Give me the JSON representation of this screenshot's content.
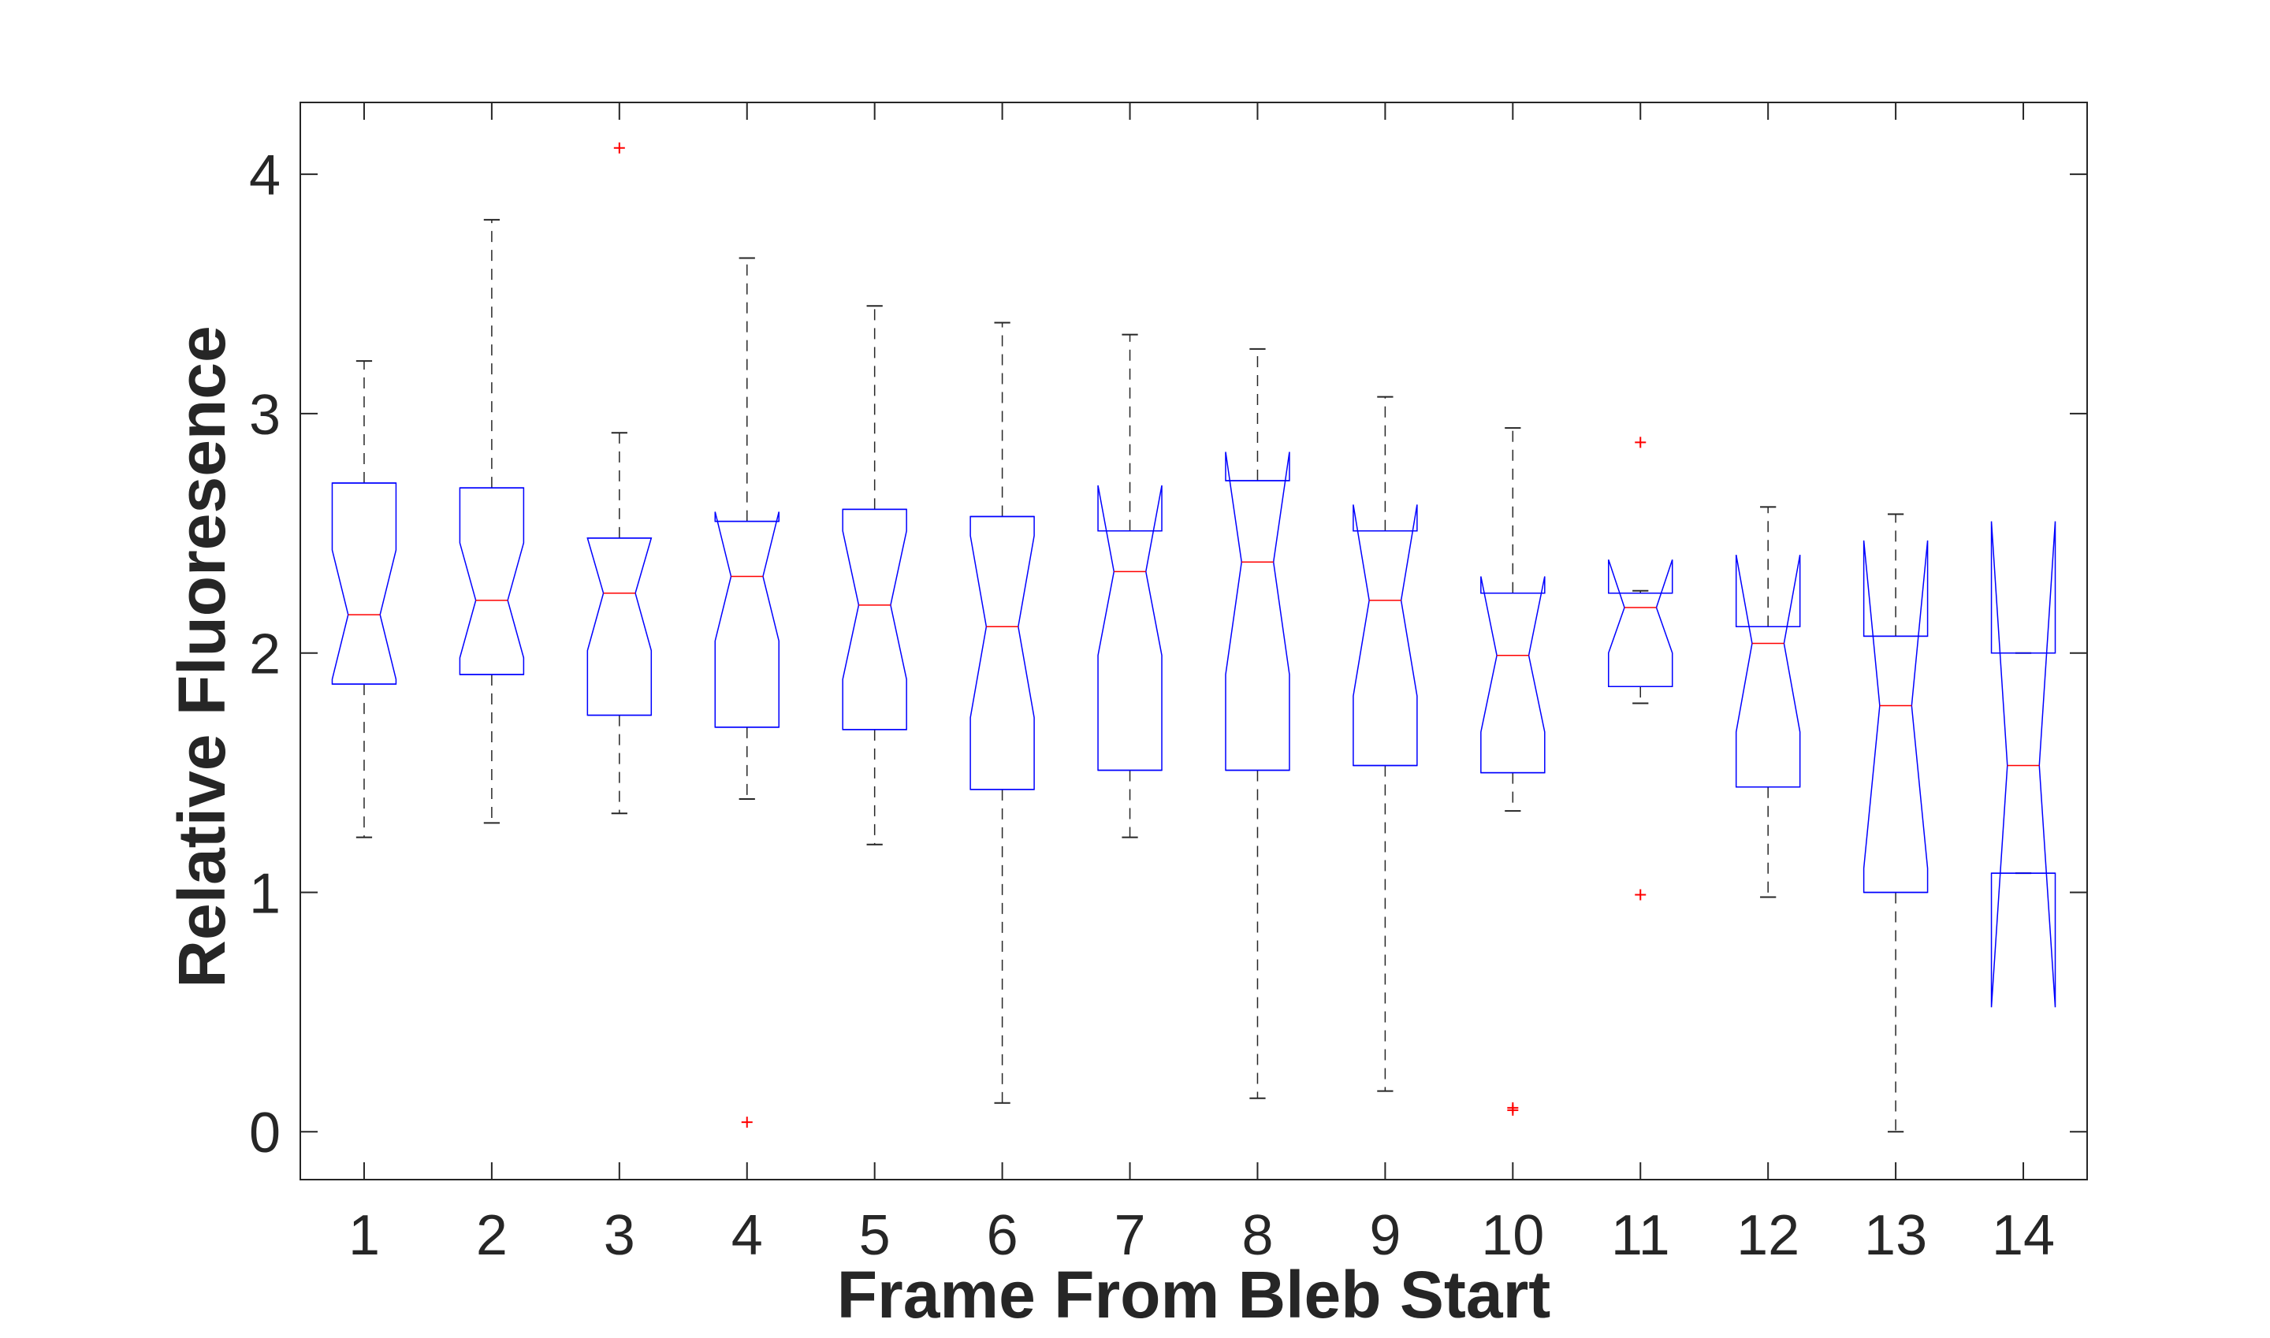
{
  "chart_data": {
    "type": "boxplot",
    "title": "",
    "xlabel": "Frame From Bleb Start",
    "ylabel": "Relative Fluoresence",
    "categories": [
      "1",
      "2",
      "3",
      "4",
      "5",
      "6",
      "7",
      "8",
      "9",
      "10",
      "11",
      "12",
      "13",
      "14"
    ],
    "xlim": [
      0.5,
      14.5
    ],
    "ylim": [
      -0.2,
      4.3
    ],
    "yticks": [
      0,
      1,
      2,
      3,
      4
    ],
    "notched": true,
    "grid": false,
    "colors": {
      "box": "#0000ff",
      "median": "#ff0000",
      "whisker": "#262626",
      "outlier": "#ff0000",
      "axes": "#262626"
    },
    "series": [
      {
        "category": "1",
        "q1": 1.87,
        "median": 2.16,
        "q3": 2.71,
        "whisker_low": 1.23,
        "whisker_high": 3.22,
        "notch_low": 1.89,
        "notch_high": 2.43,
        "outliers": []
      },
      {
        "category": "2",
        "q1": 1.91,
        "median": 2.22,
        "q3": 2.69,
        "whisker_low": 1.29,
        "whisker_high": 3.81,
        "notch_low": 1.98,
        "notch_high": 2.46,
        "outliers": []
      },
      {
        "category": "3",
        "q1": 1.74,
        "median": 2.25,
        "q3": 2.48,
        "whisker_low": 1.33,
        "whisker_high": 2.92,
        "notch_low": 2.01,
        "notch_high": 2.48,
        "outliers": [
          4.11
        ]
      },
      {
        "category": "4",
        "q1": 1.69,
        "median": 2.32,
        "q3": 2.55,
        "whisker_low": 1.39,
        "whisker_high": 3.65,
        "notch_low": 2.05,
        "notch_high": 2.59,
        "outliers": [
          0.04
        ]
      },
      {
        "category": "5",
        "q1": 1.68,
        "median": 2.2,
        "q3": 2.6,
        "whisker_low": 1.2,
        "whisker_high": 3.45,
        "notch_low": 1.89,
        "notch_high": 2.51,
        "outliers": []
      },
      {
        "category": "6",
        "q1": 1.43,
        "median": 2.11,
        "q3": 2.57,
        "whisker_low": 0.12,
        "whisker_high": 3.38,
        "notch_low": 1.73,
        "notch_high": 2.49,
        "outliers": []
      },
      {
        "category": "7",
        "q1": 1.51,
        "median": 2.34,
        "q3": 2.51,
        "whisker_low": 1.23,
        "whisker_high": 3.33,
        "notch_low": 1.99,
        "notch_high": 2.7,
        "outliers": []
      },
      {
        "category": "8",
        "q1": 1.51,
        "median": 2.38,
        "q3": 2.72,
        "whisker_low": 0.14,
        "whisker_high": 3.27,
        "notch_low": 1.91,
        "notch_high": 2.84,
        "outliers": []
      },
      {
        "category": "9",
        "q1": 1.53,
        "median": 2.22,
        "q3": 2.51,
        "whisker_low": 0.17,
        "whisker_high": 3.07,
        "notch_low": 1.82,
        "notch_high": 2.62,
        "outliers": []
      },
      {
        "category": "10",
        "q1": 1.5,
        "median": 1.99,
        "q3": 2.25,
        "whisker_low": 1.34,
        "whisker_high": 2.94,
        "notch_low": 1.67,
        "notch_high": 2.32,
        "outliers": [
          0.09,
          0.1
        ]
      },
      {
        "category": "11",
        "q1": 1.86,
        "median": 2.19,
        "q3": 2.25,
        "whisker_low": 1.79,
        "whisker_high": 2.26,
        "notch_low": 2.0,
        "notch_high": 2.39,
        "outliers": [
          2.88,
          0.99
        ]
      },
      {
        "category": "12",
        "q1": 1.44,
        "median": 2.04,
        "q3": 2.11,
        "whisker_low": 0.98,
        "whisker_high": 2.61,
        "notch_low": 1.67,
        "notch_high": 2.41,
        "outliers": []
      },
      {
        "category": "13",
        "q1": 1.0,
        "median": 1.78,
        "q3": 2.07,
        "whisker_low": 0.0,
        "whisker_high": 2.58,
        "notch_low": 1.1,
        "notch_high": 2.47,
        "outliers": []
      },
      {
        "category": "14",
        "q1": 1.08,
        "median": 1.53,
        "q3": 2.0,
        "whisker_low": 1.08,
        "whisker_high": 2.0,
        "notch_low": 0.52,
        "notch_high": 2.55,
        "outliers": []
      }
    ]
  }
}
